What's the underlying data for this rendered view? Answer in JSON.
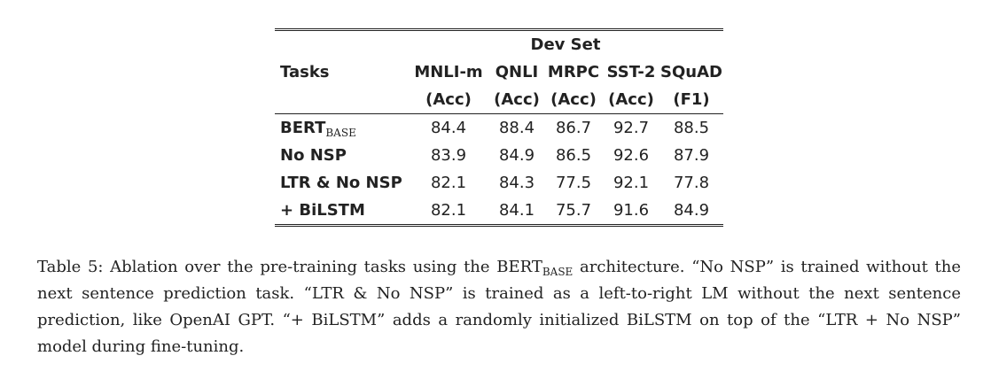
{
  "table": {
    "group_header": "Dev Set",
    "tasks_header": "Tasks",
    "columns": [
      {
        "name": "MNLI-m",
        "metric": "(Acc)"
      },
      {
        "name": "QNLI",
        "metric": "(Acc)"
      },
      {
        "name": "MRPC",
        "metric": "(Acc)"
      },
      {
        "name": "SST-2",
        "metric": "(Acc)"
      },
      {
        "name": "SQuAD",
        "metric": "(F1)"
      }
    ],
    "rows": [
      {
        "task": "BERT",
        "task_sub": "BASE",
        "values": [
          "84.4",
          "88.4",
          "86.7",
          "92.7",
          "88.5"
        ]
      },
      {
        "task": "No NSP",
        "values": [
          "83.9",
          "84.9",
          "86.5",
          "92.6",
          "87.9"
        ]
      },
      {
        "task": "LTR & No NSP",
        "values": [
          "82.1",
          "84.3",
          "77.5",
          "92.1",
          "77.8"
        ]
      },
      {
        "task": "+ BiLSTM",
        "values": [
          "82.1",
          "84.1",
          "75.7",
          "91.6",
          "84.9"
        ]
      }
    ]
  },
  "caption": {
    "part1": "Table 5: Ablation over the pre-training tasks using the BERT",
    "sub": "BASE",
    "part2": " architecture. “No NSP” is trained without the next sentence prediction task. “LTR & No NSP” is trained as a left-to-right LM without the next sentence prediction, like OpenAI GPT. “+ BiLSTM” adds a randomly initialized BiLSTM on top of the “LTR + No NSP” model during fine-tuning."
  }
}
